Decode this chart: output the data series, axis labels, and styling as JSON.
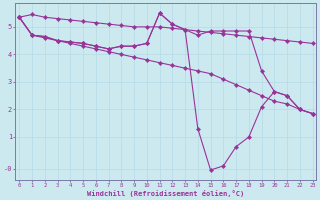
{
  "bg_color": "#cde9f0",
  "line_color": "#993399",
  "grid_color": "#b8dce8",
  "axis_color": "#7a7aaa",
  "xlabel": "Windchill (Refroidissement éolien,°C)",
  "ylabel_ticks": [
    "-0",
    "1",
    "2",
    "3",
    "4",
    "5"
  ],
  "ytick_vals": [
    -0.15,
    1,
    2,
    3,
    4,
    5
  ],
  "xtick_vals": [
    0,
    1,
    2,
    3,
    4,
    5,
    6,
    7,
    8,
    9,
    10,
    11,
    12,
    13,
    14,
    15,
    16,
    17,
    18,
    19,
    20,
    21,
    22,
    23
  ],
  "xlim": [
    -0.3,
    23.3
  ],
  "ylim": [
    -0.55,
    5.85
  ],
  "line1_x": [
    0,
    1,
    2,
    3,
    4,
    5,
    6,
    7,
    8,
    9,
    10,
    11,
    12,
    13,
    14,
    15,
    16,
    17,
    18,
    19,
    20,
    21,
    22,
    23
  ],
  "line1_y": [
    5.35,
    5.45,
    5.35,
    5.3,
    5.25,
    5.2,
    5.15,
    5.1,
    5.05,
    5.0,
    5.0,
    5.0,
    4.95,
    4.9,
    4.85,
    4.8,
    4.75,
    4.7,
    4.65,
    4.6,
    4.55,
    4.5,
    4.45,
    4.4
  ],
  "line2_x": [
    0,
    1,
    2,
    3,
    4,
    5,
    6,
    7,
    8,
    9,
    10,
    11,
    12,
    13,
    14,
    15,
    16,
    17,
    18,
    19,
    20,
    21,
    22,
    23
  ],
  "line2_y": [
    5.35,
    4.7,
    4.65,
    4.5,
    4.45,
    4.4,
    4.3,
    4.2,
    4.3,
    4.3,
    4.4,
    5.5,
    5.1,
    4.9,
    4.7,
    4.85,
    4.85,
    4.85,
    4.85,
    3.4,
    2.65,
    2.5,
    2.0,
    1.85
  ],
  "line3_x": [
    0,
    1,
    2,
    3,
    4,
    5,
    6,
    7,
    8,
    9,
    10,
    11,
    12,
    13,
    14,
    15,
    16,
    17,
    18,
    19,
    20,
    21,
    22,
    23
  ],
  "line3_y": [
    5.35,
    4.7,
    4.65,
    4.5,
    4.45,
    4.4,
    4.3,
    4.2,
    4.3,
    4.3,
    4.4,
    5.5,
    5.1,
    4.9,
    1.3,
    -0.2,
    -0.05,
    0.65,
    1.0,
    2.1,
    2.65,
    2.5,
    2.0,
    1.85
  ],
  "line4_x": [
    0,
    1,
    2,
    3,
    4,
    5,
    6,
    7,
    8,
    9,
    10,
    11,
    12,
    13,
    14,
    15,
    16,
    17,
    18,
    19,
    20,
    21,
    22,
    23
  ],
  "line4_y": [
    5.35,
    4.7,
    4.6,
    4.5,
    4.4,
    4.3,
    4.2,
    4.1,
    4.0,
    3.9,
    3.8,
    3.7,
    3.6,
    3.5,
    3.4,
    3.3,
    3.1,
    2.9,
    2.7,
    2.5,
    2.3,
    2.2,
    2.0,
    1.85
  ]
}
